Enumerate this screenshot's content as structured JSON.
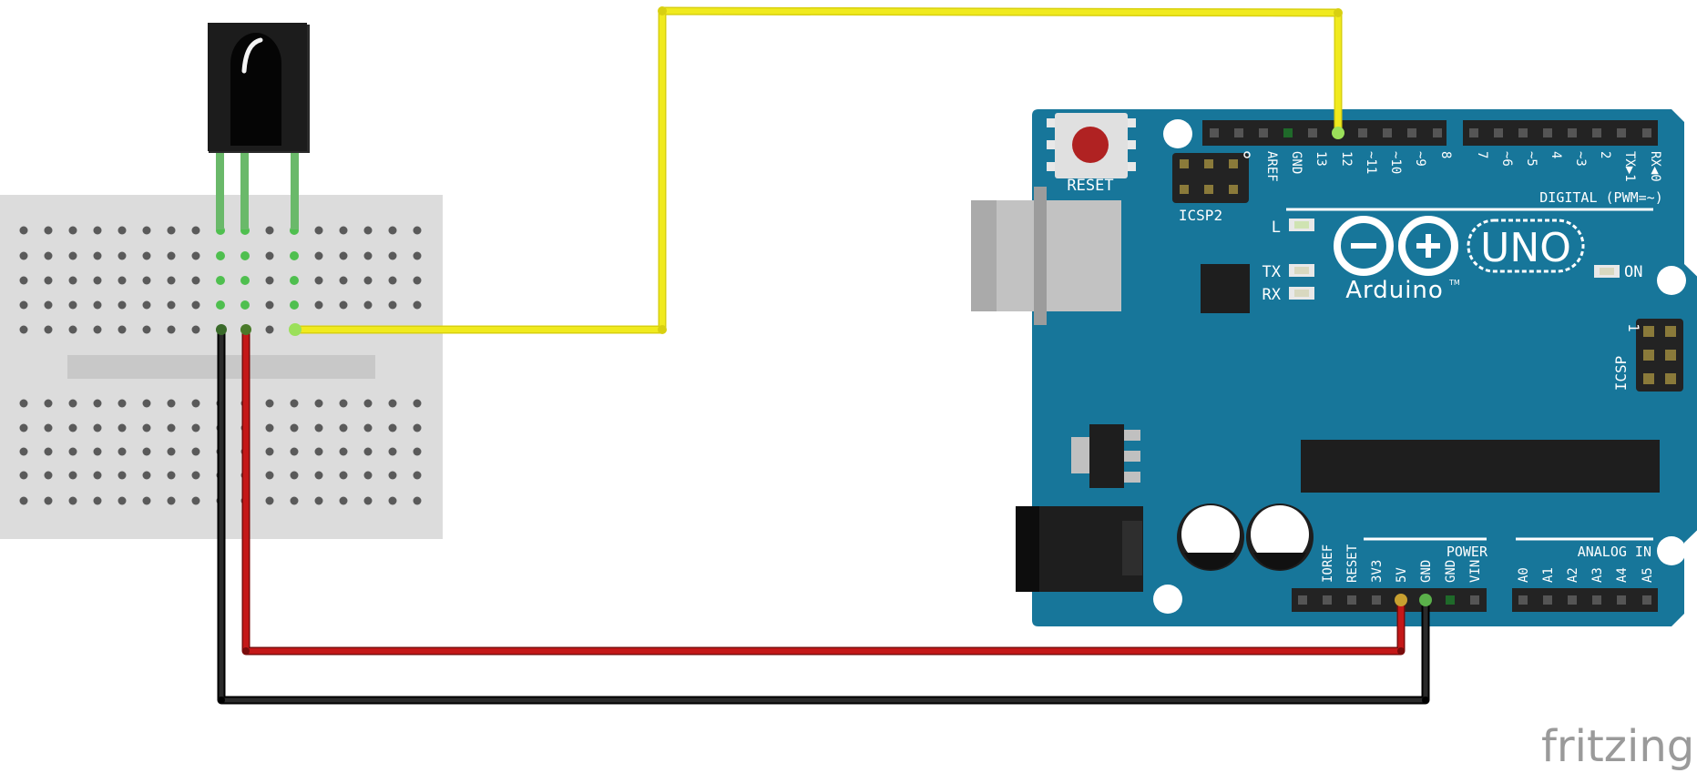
{
  "board": {
    "reset_label": "RESET",
    "icsp2_label": "ICSP2",
    "icsp_label": "ICSP",
    "icsp_pin1_label": "1",
    "digital_header_label": "DIGITAL (PWM=~)",
    "power_header_label": "POWER",
    "analog_header_label": "ANALOG IN",
    "led_l_label": "L",
    "led_tx_label": "TX",
    "led_rx_label": "RX",
    "led_on_label": "ON",
    "brand_label": "Arduino",
    "trademark": "TM",
    "model_label": "UNO",
    "digital_pins": [
      "AREF",
      "GND",
      "13",
      "12",
      "~11",
      "~10",
      "~9",
      "8",
      "7",
      "~6",
      "~5",
      "4",
      "~3",
      "2",
      "TX▶1",
      "RX◀0"
    ],
    "power_pins": [
      "IOREF",
      "RESET",
      "3V3",
      "5V",
      "GND",
      "GND",
      "VIN"
    ],
    "analog_pins": [
      "A0",
      "A1",
      "A2",
      "A3",
      "A4",
      "A5"
    ]
  },
  "watermark": "fritzing",
  "colors": {
    "board": "#17769a",
    "wire_signal": "#f0ea1e",
    "wire_power": "#c41818",
    "wire_ground": "#1a1a1a",
    "breadboard": "#dcdcdc",
    "sensor_body": "#1c1c1c",
    "sensor_leg": "#6ab96a",
    "reset_button": "#b02222"
  }
}
